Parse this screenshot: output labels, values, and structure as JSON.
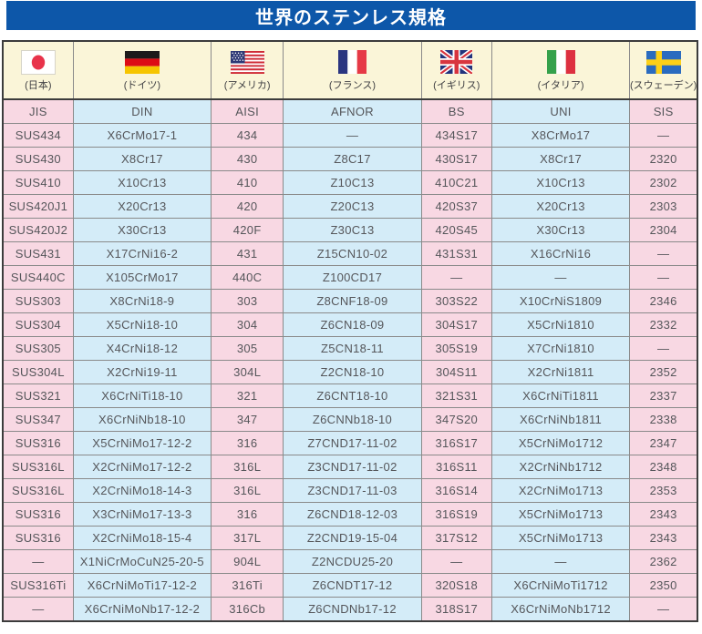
{
  "title": "世界のステンレス規格",
  "colors": {
    "title_bar_bg": "#0d57a9",
    "pink_cell": "#f8d8e3",
    "blue_cell": "#d4ecf8",
    "cream_cell": "#faf5d8",
    "outer_border": "#3c3c3c",
    "inner_border": "#8a8a8a"
  },
  "flags": [
    {
      "country": "(日本)",
      "icon": "flag-japan-icon"
    },
    {
      "country": "(ドイツ)",
      "icon": "flag-germany-icon"
    },
    {
      "country": "(アメリカ)",
      "icon": "flag-usa-icon"
    },
    {
      "country": "(フランス)",
      "icon": "flag-france-icon"
    },
    {
      "country": "(イギリス)",
      "icon": "flag-uk-icon"
    },
    {
      "country": "(イタリア)",
      "icon": "flag-italy-icon"
    },
    {
      "country": "(スウェーデン)",
      "icon": "flag-sweden-icon"
    }
  ],
  "columns": [
    "JIS",
    "DIN",
    "AISI",
    "AFNOR",
    "BS",
    "UNI",
    "SIS"
  ],
  "rows": [
    [
      "SUS434",
      "X6CrMo17-1",
      "434",
      "—",
      "434S17",
      "X8CrMo17",
      "—"
    ],
    [
      "SUS430",
      "X8Cr17",
      "430",
      "Z8C17",
      "430S17",
      "X8Cr17",
      "2320"
    ],
    [
      "SUS410",
      "X10Cr13",
      "410",
      "Z10C13",
      "410C21",
      "X10Cr13",
      "2302"
    ],
    [
      "SUS420J1",
      "X20Cr13",
      "420",
      "Z20C13",
      "420S37",
      "X20Cr13",
      "2303"
    ],
    [
      "SUS420J2",
      "X30Cr13",
      "420F",
      "Z30C13",
      "420S45",
      "X30Cr13",
      "2304"
    ],
    [
      "SUS431",
      "X17CrNi16-2",
      "431",
      "Z15CN10-02",
      "431S31",
      "X16CrNi16",
      "—"
    ],
    [
      "SUS440C",
      "X105CrMo17",
      "440C",
      "Z100CD17",
      "—",
      "—",
      "—"
    ],
    [
      "SUS303",
      "X8CrNi18-9",
      "303",
      "Z8CNF18-09",
      "303S22",
      "X10CrNiS1809",
      "2346"
    ],
    [
      "SUS304",
      "X5CrNi18-10",
      "304",
      "Z6CN18-09",
      "304S17",
      "X5CrNi1810",
      "2332"
    ],
    [
      "SUS305",
      "X4CrNi18-12",
      "305",
      "Z5CN18-11",
      "305S19",
      "X7CrNi1810",
      "—"
    ],
    [
      "SUS304L",
      "X2CrNi19-11",
      "304L",
      "Z2CN18-10",
      "304S11",
      "X2CrNi1811",
      "2352"
    ],
    [
      "SUS321",
      "X6CrNiTi18-10",
      "321",
      "Z6CNT18-10",
      "321S31",
      "X6CrNiTi1811",
      "2337"
    ],
    [
      "SUS347",
      "X6CrNiNb18-10",
      "347",
      "Z6CNNb18-10",
      "347S20",
      "X6CrNiNb1811",
      "2338"
    ],
    [
      "SUS316",
      "X5CrNiMo17-12-2",
      "316",
      "Z7CND17-11-02",
      "316S17",
      "X5CrNiMo1712",
      "2347"
    ],
    [
      "SUS316L",
      "X2CrNiMo17-12-2",
      "316L",
      "Z3CND17-11-02",
      "316S11",
      "X2CrNiNb1712",
      "2348"
    ],
    [
      "SUS316L",
      "X2CrNiMo18-14-3",
      "316L",
      "Z3CND17-11-03",
      "316S14",
      "X2CrNiMo1713",
      "2353"
    ],
    [
      "SUS316",
      "X3CrNiMo17-13-3",
      "316",
      "Z6CND18-12-03",
      "316S19",
      "X5CrNiMo1713",
      "2343"
    ],
    [
      "SUS316",
      "X2CrNiMo18-15-4",
      "317L",
      "Z2CND19-15-04",
      "317S12",
      "X5CrNiMo1713",
      "2343"
    ],
    [
      "—",
      "X1NiCrMoCuN25-20-5",
      "904L",
      "Z2NCDU25-20",
      "—",
      "—",
      "2362"
    ],
    [
      "SUS316Ti",
      "X6CrNiMoTi17-12-2",
      "316Ti",
      "Z6CNDT17-12",
      "320S18",
      "X6CrNiMoTi1712",
      "2350"
    ],
    [
      "—",
      "X6CrNiMoNb17-12-2",
      "316Cb",
      "Z6CNDNb17-12",
      "318S17",
      "X6CrNiMoNb1712",
      "—"
    ]
  ]
}
